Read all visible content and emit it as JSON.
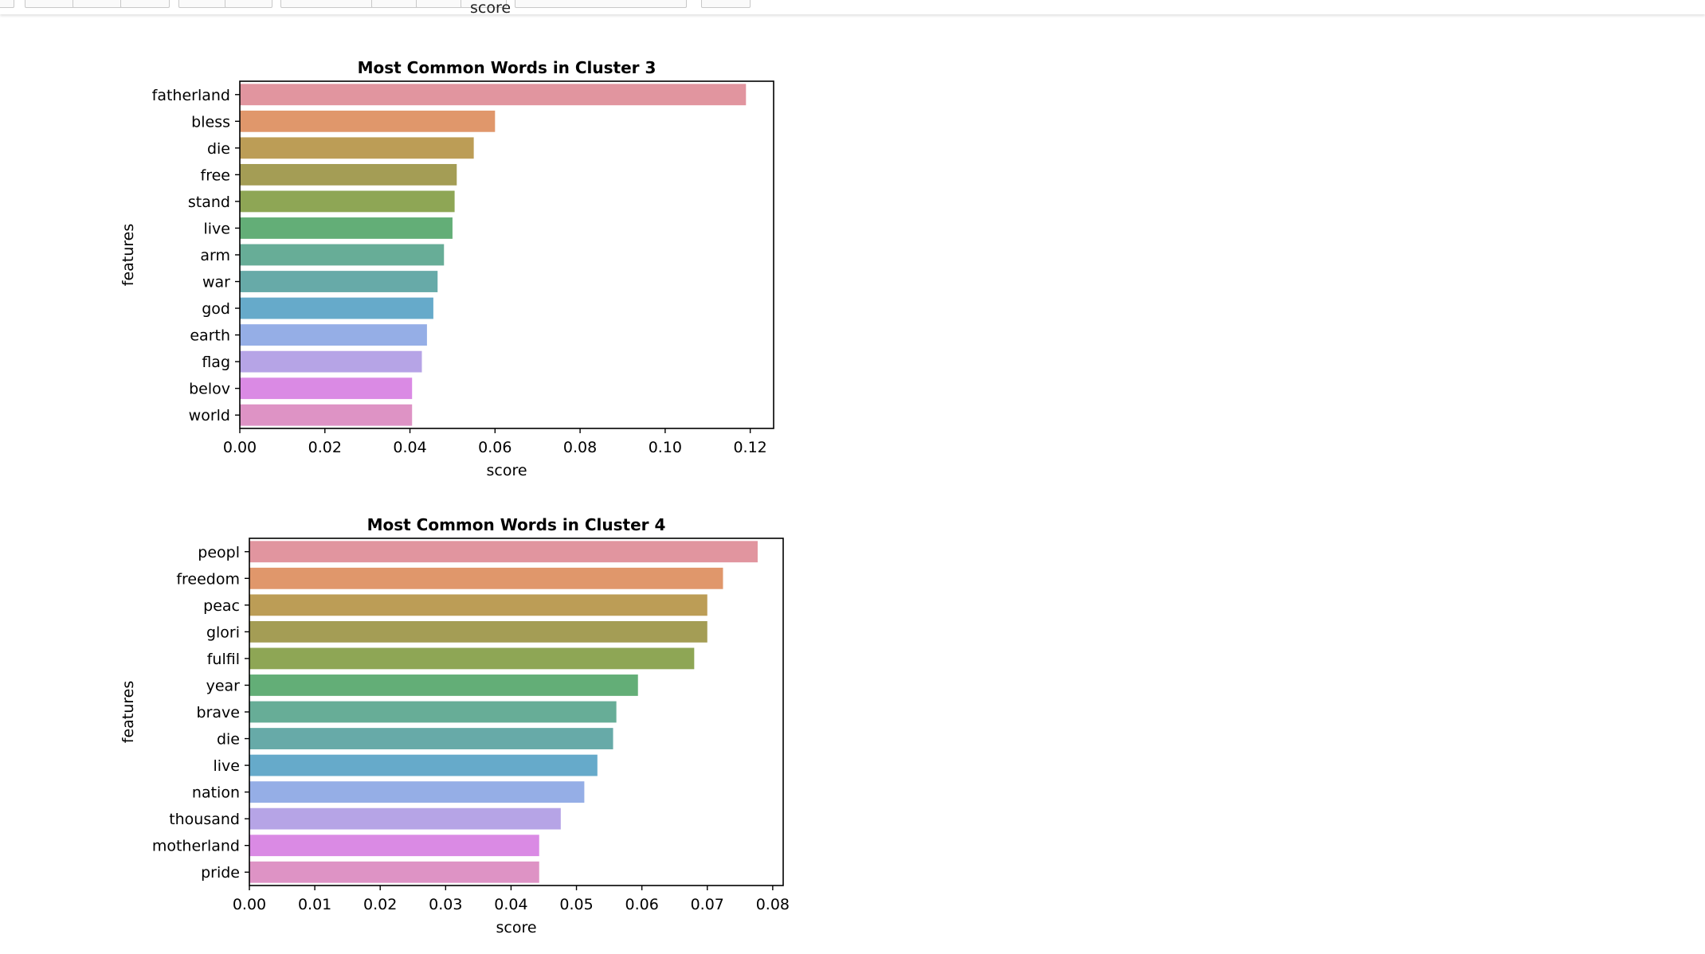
{
  "toolbar": {
    "cutoff_label": "score"
  },
  "chart_data": [
    {
      "type": "bar",
      "orientation": "horizontal",
      "title": "Most Common Words in Cluster 3",
      "xlabel": "score",
      "ylabel": "features",
      "categories": [
        "fatherland",
        "bless",
        "die",
        "free",
        "stand",
        "live",
        "arm",
        "war",
        "god",
        "earth",
        "flag",
        "belov",
        "world"
      ],
      "values": [
        0.119,
        0.06,
        0.055,
        0.051,
        0.0505,
        0.05,
        0.048,
        0.0465,
        0.0455,
        0.044,
        0.0428,
        0.0405,
        0.0405
      ],
      "xlim": [
        0,
        0.1255
      ],
      "xticks": [
        0.0,
        0.02,
        0.04,
        0.06,
        0.08,
        0.1,
        0.12
      ],
      "xtick_labels": [
        "0.00",
        "0.02",
        "0.04",
        "0.06",
        "0.08",
        "0.10",
        "0.12"
      ],
      "grid": false,
      "colors": [
        "#e1959f",
        "#e0976b",
        "#bc9d56",
        "#a49d55",
        "#8ea655",
        "#63ae77",
        "#67ad97",
        "#67aaa8",
        "#66aaca",
        "#95aee6",
        "#b6a4e6",
        "#da8ae4",
        "#de93c5"
      ]
    },
    {
      "type": "bar",
      "orientation": "horizontal",
      "title": "Most Common Words in Cluster 4",
      "xlabel": "score",
      "ylabel": "features",
      "categories": [
        "peopl",
        "freedom",
        "peac",
        "glori",
        "fulfil",
        "year",
        "brave",
        "die",
        "live",
        "nation",
        "thousand",
        "motherland",
        "pride"
      ],
      "values": [
        0.0777,
        0.0724,
        0.07,
        0.07,
        0.068,
        0.0594,
        0.0561,
        0.0556,
        0.0532,
        0.0512,
        0.0476,
        0.0443,
        0.0443
      ],
      "xlim": [
        0,
        0.0816
      ],
      "xticks": [
        0.0,
        0.01,
        0.02,
        0.03,
        0.04,
        0.05,
        0.06,
        0.07,
        0.08
      ],
      "xtick_labels": [
        "0.00",
        "0.01",
        "0.02",
        "0.03",
        "0.04",
        "0.05",
        "0.06",
        "0.07",
        "0.08"
      ],
      "grid": false,
      "colors": [
        "#e1959f",
        "#e0976b",
        "#bc9d56",
        "#a49d55",
        "#8ea655",
        "#63ae77",
        "#67ad97",
        "#67aaa8",
        "#66aaca",
        "#95aee6",
        "#b6a4e6",
        "#da8ae4",
        "#de93c5"
      ]
    }
  ]
}
